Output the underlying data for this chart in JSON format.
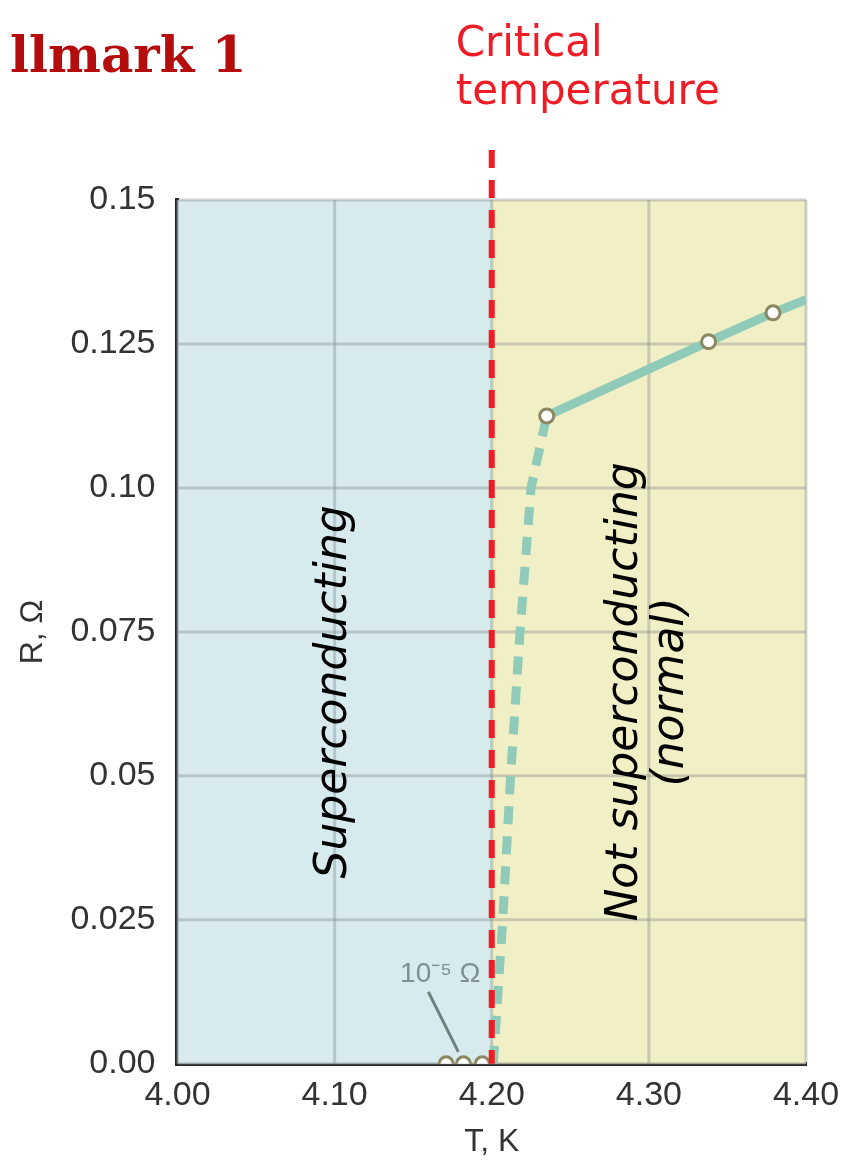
{
  "chart_data": {
    "type": "line",
    "title": "llmark 1",
    "xlabel": "T, K",
    "ylabel": "R, Ω",
    "xlim": [
      4.0,
      4.4
    ],
    "ylim": [
      0,
      0.15
    ],
    "xticks": [
      {
        "value": 4.0,
        "label": "4.00"
      },
      {
        "value": 4.1,
        "label": "4.10"
      },
      {
        "value": 4.2,
        "label": "4.20"
      },
      {
        "value": 4.3,
        "label": "4.30"
      },
      {
        "value": 4.4,
        "label": "4.40"
      }
    ],
    "yticks": [
      {
        "value": 0,
        "label": "0.00"
      },
      0.025,
      0.05,
      0.075,
      {
        "value": 0.1,
        "label": "0.10"
      },
      0.125,
      0.15
    ],
    "grid": true,
    "legend": false,
    "series": [
      {
        "color": "#8fcbb8",
        "line_style": "dashed",
        "marker": "none",
        "x": [
          4.201,
          4.207,
          4.212,
          4.218,
          4.225,
          4.235
        ],
        "values": [
          0,
          0.025,
          0.05,
          0.075,
          0.1,
          0.1125
        ]
      },
      {
        "color": "#8fcbb8",
        "line_style": "solid",
        "marker": "none",
        "x": [
          4.235,
          4.338,
          4.379,
          4.4
        ],
        "values": [
          0.1125,
          0.1254,
          0.1304,
          0.1327
        ]
      },
      {
        "type": "scatter",
        "color": "#8b8760",
        "marker": "circle",
        "x": [
          4.171,
          4.182,
          4.194,
          4.235,
          4.338,
          4.379
        ],
        "values": [
          0,
          0,
          0,
          0.1125,
          0.1254,
          0.1304
        ]
      }
    ],
    "bands": [
      {
        "axis": "x",
        "from": 4.0,
        "to": 4.2,
        "label": "Superconducting",
        "color": "#d7eaee"
      },
      {
        "axis": "x",
        "from": 4.2,
        "to": 4.4,
        "label": "Not superconducting\n(normal)",
        "color": "#f1efc6"
      }
    ],
    "ref_lines": [
      {
        "axis": "x",
        "value": 4.2,
        "label": "Critical\ntemperature",
        "color": "#ee1c24",
        "line_style": "dashed"
      }
    ],
    "annotations": [
      {
        "text": "10⁻⁵ Ω",
        "x": 4.18,
        "y": 0
      }
    ]
  }
}
